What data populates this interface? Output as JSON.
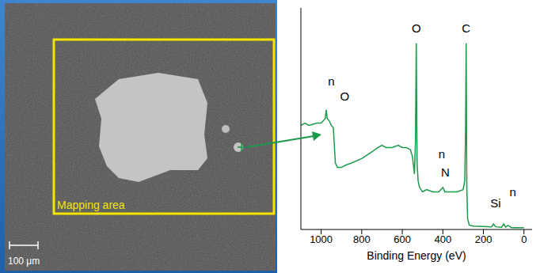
{
  "image": {
    "box_label": "Mapping area",
    "scale_bar": "100 μm"
  },
  "chart_data": {
    "type": "line",
    "x_label": "Binding Energy (eV)",
    "x": [
      1100,
      1080,
      1060,
      1040,
      1020,
      1000,
      980,
      975,
      970,
      960,
      950,
      940,
      930,
      920,
      900,
      880,
      850,
      800,
      750,
      720,
      700,
      680,
      650,
      620,
      600,
      580,
      560,
      550,
      540,
      535,
      531,
      527,
      522,
      515,
      500,
      480,
      450,
      420,
      400,
      390,
      360,
      330,
      300,
      292,
      288,
      285,
      282,
      278,
      270,
      250,
      200,
      160,
      150,
      140,
      110,
      100,
      90,
      80,
      60,
      30,
      10,
      0
    ],
    "values": [
      47,
      48,
      47,
      47.5,
      48,
      48,
      50,
      54,
      50,
      49,
      47,
      46,
      30,
      28,
      28,
      29,
      30,
      32,
      35,
      37,
      38,
      37,
      37,
      38,
      37,
      37,
      36,
      33,
      25,
      40,
      84,
      30,
      22,
      19,
      17,
      18,
      17,
      17,
      19,
      17,
      17,
      17,
      18,
      22,
      45,
      84,
      20,
      5,
      2,
      1.5,
      1.3,
      1.2,
      2.5,
      1.2,
      1,
      2.5,
      1,
      1.8,
      0.8,
      0.8,
      0.8,
      0.8
    ],
    "color": "#1a9a4a",
    "xlim": [
      1100,
      -40
    ],
    "xticks": [
      1000,
      800,
      600,
      400,
      200,
      0
    ],
    "ylim": [
      0,
      100
    ],
    "yticks": [
      0,
      25,
      50,
      75,
      100
    ],
    "tick_labels": "x",
    "grid": false,
    "annotations": [
      {
        "text": "n",
        "x": 950,
        "y": 67
      },
      {
        "text": "O",
        "x": 884,
        "y": 60
      },
      {
        "text": "O",
        "x": 531,
        "y": 91
      },
      {
        "text": "C",
        "x": 285,
        "y": 91
      },
      {
        "text": "n",
        "x": 405,
        "y": 34
      },
      {
        "text": "N",
        "x": 388,
        "y": 26
      },
      {
        "text": "Si",
        "x": 140,
        "y": 12
      },
      {
        "text": "n",
        "x": 55,
        "y": 17
      }
    ]
  }
}
